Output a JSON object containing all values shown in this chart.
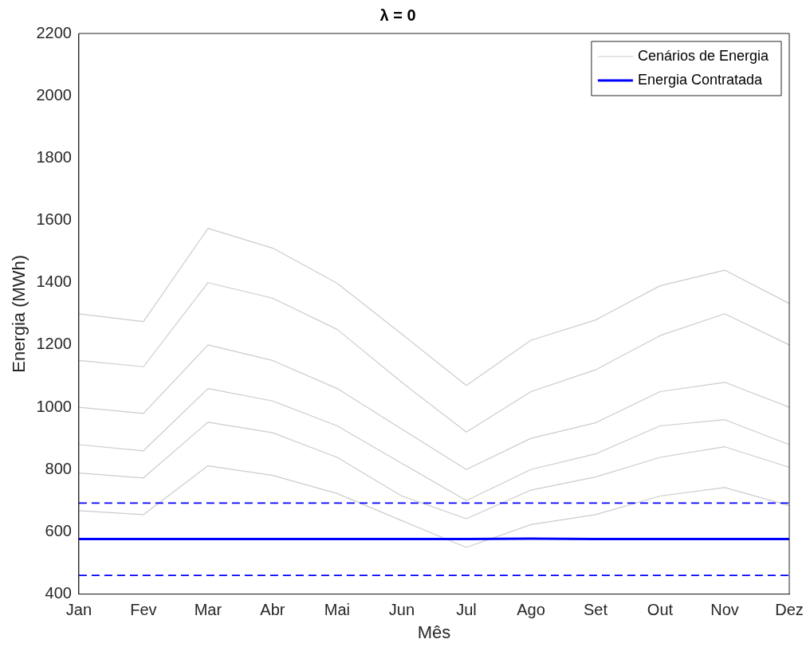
{
  "chart_data": {
    "type": "line",
    "title": "λ = 0",
    "xlabel": "Mês",
    "ylabel": "Energia (MWh)",
    "categories": [
      "Jan",
      "Fev",
      "Mar",
      "Abr",
      "Mai",
      "Jun",
      "Jul",
      "Ago",
      "Set",
      "Out",
      "Nov",
      "Dez"
    ],
    "ylim": [
      400,
      2200
    ],
    "yticks": [
      400,
      600,
      800,
      1000,
      1200,
      1400,
      1600,
      1800,
      2000,
      2200
    ],
    "grid": false,
    "legend": "top right",
    "marker": "none",
    "line_style": "solid",
    "series": [
      {
        "name": "Cenários de Energia",
        "color": "#cccccc",
        "values": [
          1300,
          1275,
          1574,
          1511,
          1398,
          1235,
          1070,
          1215,
          1280,
          1390,
          1440,
          1333
        ]
      },
      {
        "color": "#cccccc",
        "values": [
          1150,
          1130,
          1400,
          1350,
          1250,
          1080,
          920,
          1050,
          1120,
          1230,
          1300,
          1200
        ]
      },
      {
        "color": "#cccccc",
        "values": [
          1000,
          980,
          1200,
          1150,
          1060,
          930,
          800,
          900,
          950,
          1050,
          1080,
          1000
        ]
      },
      {
        "color": "#cccccc",
        "values": [
          880,
          860,
          1060,
          1020,
          940,
          820,
          700,
          800,
          850,
          940,
          960,
          880
        ]
      },
      {
        "color": "#cccccc",
        "values": [
          789,
          773,
          952,
          918,
          839,
          715,
          642,
          734,
          776,
          839,
          873,
          807
        ]
      },
      {
        "color": "#cccccc",
        "values": [
          668,
          655,
          812,
          781,
          723,
          636,
          550,
          623,
          655,
          715,
          742,
          684
        ]
      },
      {
        "name": "Energia Contratada",
        "color": "#0000ff",
        "values": [
          577,
          577,
          577,
          577,
          577,
          577,
          577,
          578,
          577,
          577,
          577,
          577
        ]
      }
    ],
    "ref_lines": [
      {
        "axis": "y",
        "value": 692,
        "color": "#0000ff",
        "line_style": "dashed"
      },
      {
        "axis": "y",
        "value": 460,
        "color": "#0000ff",
        "line_style": "dashed"
      }
    ]
  }
}
